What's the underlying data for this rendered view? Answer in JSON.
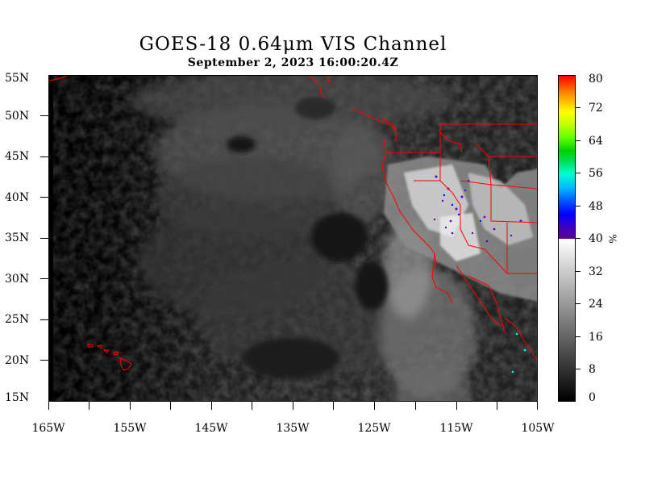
{
  "title": "GOES-18  0.64μm VIS Channel",
  "subtitle": "September  2,  2023 16:00:20.4Z",
  "latitude_labels": [
    "55N",
    "50N",
    "45N",
    "40N",
    "35N",
    "30N",
    "25N",
    "20N",
    "15N"
  ],
  "longitude_labels": [
    "165W",
    "155W",
    "145W",
    "135W",
    "125W",
    "115W",
    "105W"
  ],
  "colorbar": {
    "labels": [
      "80",
      "72",
      "64",
      "56",
      "48",
      "40",
      "32",
      "24",
      "16",
      "8",
      "0"
    ],
    "unit": "%",
    "range": [
      0,
      80
    ]
  },
  "colors": {
    "boundaries": "#ff0000",
    "background": "#ffffff"
  }
}
